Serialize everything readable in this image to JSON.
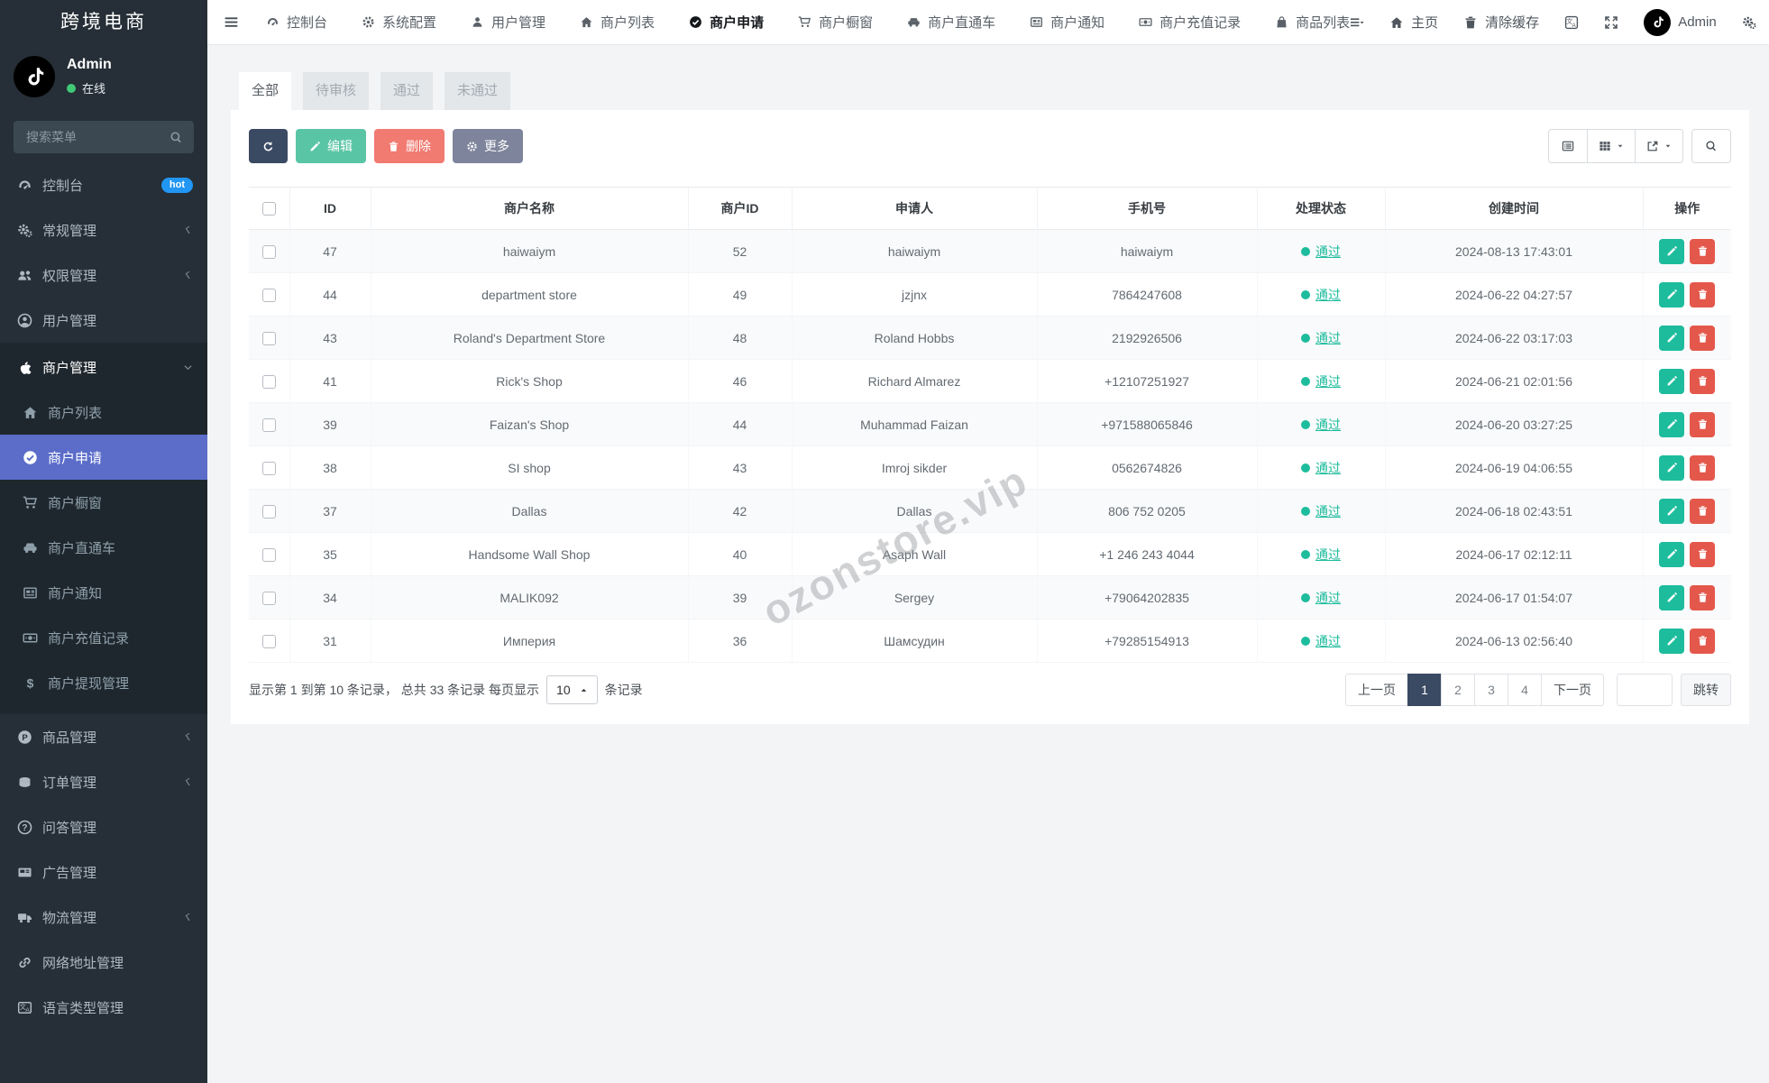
{
  "app": {
    "title": "跨境电商"
  },
  "colors": {
    "sidebar_bg": "#262f37",
    "sidebar_active_blue": "#5b6dc9",
    "accent_teal": "#1dbc9d",
    "danger_red": "#e4584c",
    "toolbar_navy": "#3b4a63",
    "hot_badge_blue": "#2196f3",
    "online_green": "#41c976",
    "status_pass_green": "#1dbc9d"
  },
  "sidebar": {
    "user": {
      "name": "Admin",
      "status": "在线"
    },
    "search_placeholder": "搜索菜单",
    "menu": [
      {
        "key": "dashboard",
        "icon": "dashboard",
        "label": "控制台",
        "badge": "hot"
      },
      {
        "key": "general-mgmt",
        "icon": "cogs",
        "label": "常规管理",
        "chevron": true
      },
      {
        "key": "permission-mgmt",
        "icon": "users",
        "label": "权限管理",
        "chevron": true
      },
      {
        "key": "user-mgmt",
        "icon": "user",
        "label": "用户管理"
      },
      {
        "key": "merchant-mgmt",
        "icon": "apple",
        "label": "商户管理",
        "expanded": true,
        "children": [
          {
            "key": "merchant-list",
            "icon": "home",
            "label": "商户列表"
          },
          {
            "key": "merchant-apply",
            "icon": "check-circle",
            "label": "商户申请",
            "active": true
          },
          {
            "key": "merchant-showcase",
            "icon": "cart",
            "label": "商户橱窗"
          },
          {
            "key": "merchant-train",
            "icon": "car",
            "label": "商户直通车"
          },
          {
            "key": "merchant-notice",
            "icon": "news",
            "label": "商户通知"
          },
          {
            "key": "merchant-recharge",
            "icon": "money",
            "label": "商户充值记录"
          },
          {
            "key": "merchant-withdraw",
            "icon": "dollar",
            "label": "商户提现管理"
          }
        ]
      },
      {
        "key": "product-mgmt",
        "icon": "product",
        "label": "商品管理",
        "chevron": true
      },
      {
        "key": "order-mgmt",
        "icon": "order",
        "label": "订单管理",
        "chevron": true
      },
      {
        "key": "qa-mgmt",
        "icon": "question",
        "label": "问答管理"
      },
      {
        "key": "ad-mgmt",
        "icon": "ad",
        "label": "广告管理"
      },
      {
        "key": "logistics-mgmt",
        "icon": "truck",
        "label": "物流管理",
        "chevron": true
      },
      {
        "key": "url-mgmt",
        "icon": "link",
        "label": "网络地址管理"
      },
      {
        "key": "language-mgmt",
        "icon": "language",
        "label": "语言类型管理"
      }
    ]
  },
  "topbar": {
    "tabs": [
      {
        "key": "dashboard",
        "icon": "dashboard",
        "label": "控制台"
      },
      {
        "key": "system-config",
        "icon": "gear",
        "label": "系统配置"
      },
      {
        "key": "user-mgmt",
        "icon": "user-solid",
        "label": "用户管理"
      },
      {
        "key": "merchant-list",
        "icon": "home",
        "label": "商户列表"
      },
      {
        "key": "merchant-apply",
        "icon": "check-circle",
        "label": "商户申请",
        "active": true
      },
      {
        "key": "merchant-showcase",
        "icon": "cart",
        "label": "商户橱窗"
      },
      {
        "key": "merchant-train",
        "icon": "car",
        "label": "商户直通车"
      },
      {
        "key": "merchant-notice",
        "icon": "news",
        "label": "商户通知"
      },
      {
        "key": "merchant-recharge",
        "icon": "money",
        "label": "商户充值记录"
      },
      {
        "key": "product-list",
        "icon": "bag",
        "label": "商品列表"
      }
    ],
    "right": [
      {
        "key": "nav-list",
        "icon": "list-caret",
        "label": ""
      },
      {
        "key": "home",
        "icon": "home",
        "label": "主页"
      },
      {
        "key": "clear-cache",
        "icon": "trash",
        "label": "清除缓存"
      },
      {
        "key": "translate",
        "icon": "translate",
        "label": ""
      },
      {
        "key": "fullscreen",
        "icon": "expand",
        "label": ""
      },
      {
        "key": "admin-user",
        "icon": "tiktok",
        "label": "Admin"
      },
      {
        "key": "settings",
        "icon": "cogs",
        "label": ""
      }
    ]
  },
  "filter_tabs": [
    {
      "key": "all",
      "label": "全部",
      "active": true
    },
    {
      "key": "pending",
      "label": "待审核"
    },
    {
      "key": "passed",
      "label": "通过"
    },
    {
      "key": "rejected",
      "label": "未通过"
    }
  ],
  "toolbar": {
    "edit_label": "编辑",
    "delete_label": "删除",
    "more_label": "更多",
    "view_buttons": [
      {
        "key": "detail-view",
        "icon": "detail",
        "caret": false
      },
      {
        "key": "columns",
        "icon": "th",
        "caret": true
      },
      {
        "key": "export",
        "icon": "export",
        "caret": true
      },
      {
        "key": "search",
        "icon": "search",
        "caret": false
      }
    ]
  },
  "table": {
    "columns": [
      "ID",
      "商户名称",
      "商户ID",
      "申请人",
      "手机号",
      "处理状态",
      "创建时间",
      "操作"
    ],
    "rows": [
      {
        "id": "47",
        "name": "haiwaiym",
        "merchant_id": "52",
        "applicant": "haiwaiym",
        "phone": "haiwaiym",
        "status": "通过",
        "created": "2024-08-13 17:43:01"
      },
      {
        "id": "44",
        "name": "department store",
        "merchant_id": "49",
        "applicant": "jzjnx",
        "phone": "7864247608",
        "status": "通过",
        "created": "2024-06-22 04:27:57"
      },
      {
        "id": "43",
        "name": "Roland's Department Store",
        "merchant_id": "48",
        "applicant": "Roland Hobbs",
        "phone": "2192926506",
        "status": "通过",
        "created": "2024-06-22 03:17:03"
      },
      {
        "id": "41",
        "name": "Rick's Shop",
        "merchant_id": "46",
        "applicant": "Richard Almarez",
        "phone": "+12107251927",
        "status": "通过",
        "created": "2024-06-21 02:01:56"
      },
      {
        "id": "39",
        "name": "Faizan's Shop",
        "merchant_id": "44",
        "applicant": "Muhammad Faizan",
        "phone": "+971588065846",
        "status": "通过",
        "created": "2024-06-20 03:27:25"
      },
      {
        "id": "38",
        "name": "SI shop",
        "merchant_id": "43",
        "applicant": "Imroj sikder",
        "phone": "0562674826",
        "status": "通过",
        "created": "2024-06-19 04:06:55"
      },
      {
        "id": "37",
        "name": "Dallas",
        "merchant_id": "42",
        "applicant": "Dallas",
        "phone": "806 752 0205",
        "status": "通过",
        "created": "2024-06-18 02:43:51"
      },
      {
        "id": "35",
        "name": "Handsome Wall Shop",
        "merchant_id": "40",
        "applicant": "Asaph Wall",
        "phone": "+1 246 243 4044",
        "status": "通过",
        "created": "2024-06-17 02:12:11"
      },
      {
        "id": "34",
        "name": "MALIK092",
        "merchant_id": "39",
        "applicant": "Sergey",
        "phone": "+79064202835",
        "status": "通过",
        "created": "2024-06-17 01:54:07"
      },
      {
        "id": "31",
        "name": "Империя",
        "merchant_id": "36",
        "applicant": "Шамсудин",
        "phone": "+79285154913",
        "status": "通过",
        "created": "2024-06-13 02:56:40"
      }
    ]
  },
  "footer": {
    "summary_prefix": "显示第 1 到第 10 条记录， 总共 33 条记录 每页显示",
    "page_size": "10",
    "summary_suffix": "条记录",
    "pagination": {
      "prev": "上一页",
      "pages": [
        "1",
        "2",
        "3",
        "4"
      ],
      "active_page": "1",
      "next": "下一页",
      "jump_label": "跳转"
    }
  },
  "watermark": "ozonstore.vip"
}
